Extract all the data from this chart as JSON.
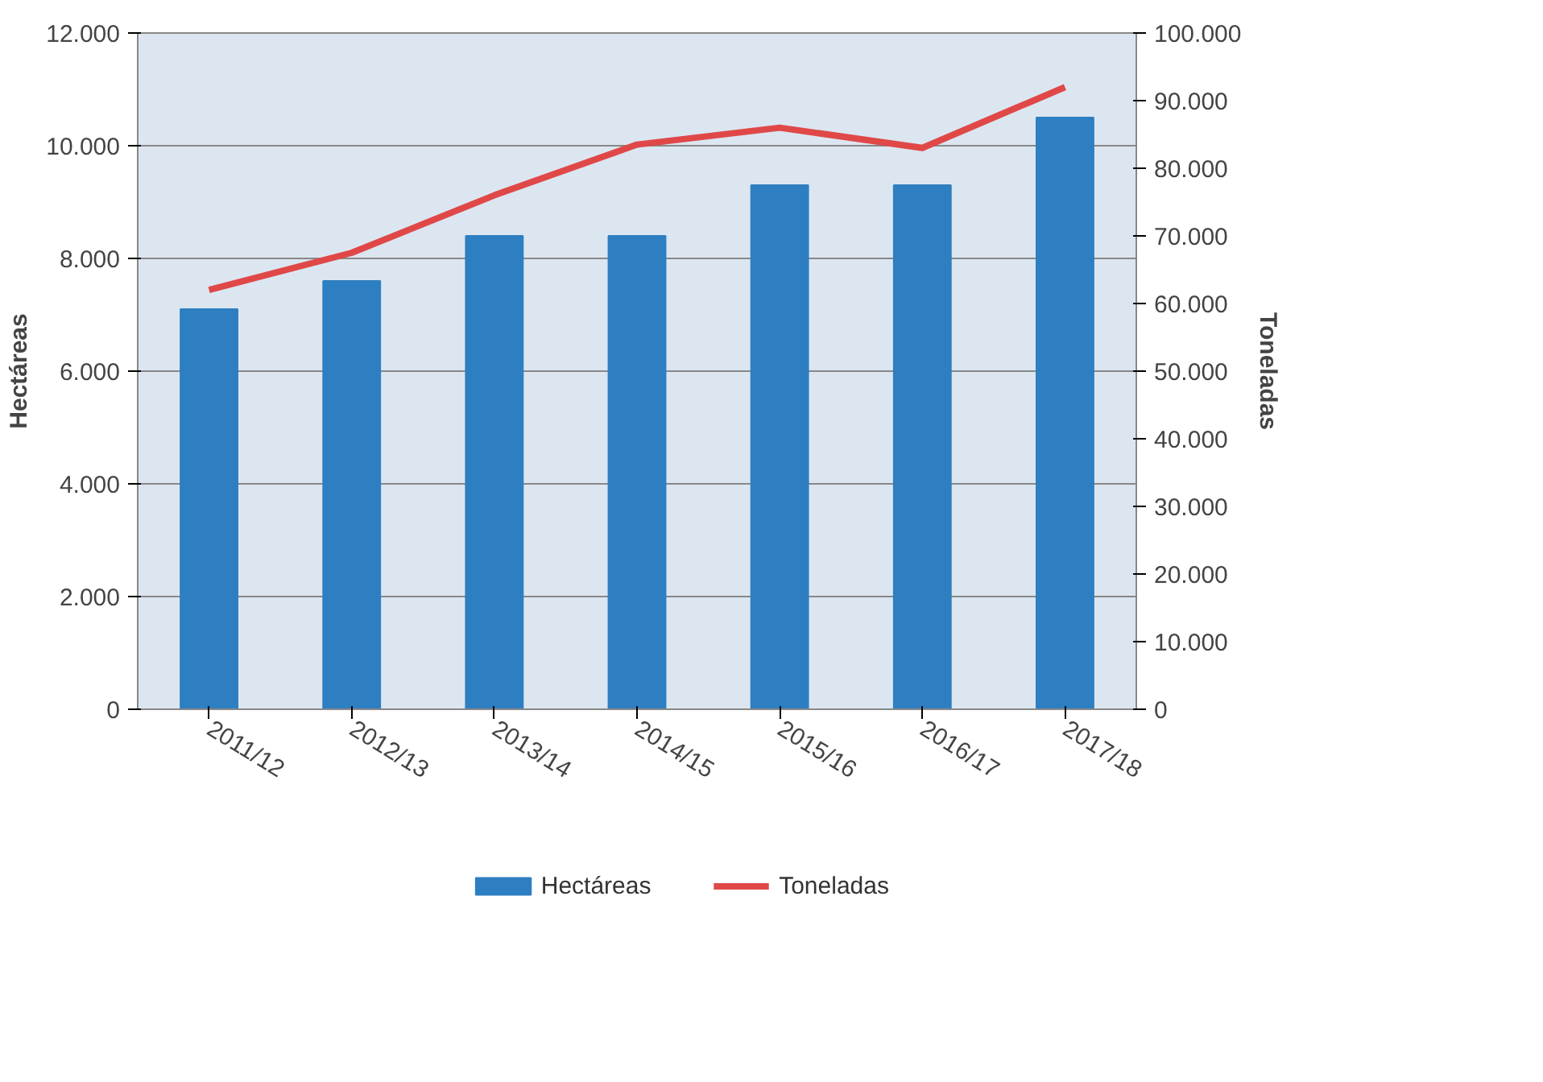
{
  "chart_data": {
    "type": "bar",
    "categories": [
      "2011/12",
      "2012/13",
      "2013/14",
      "2014/15",
      "2015/16",
      "2016/17",
      "2017/18"
    ],
    "series": [
      {
        "name": "Hectáreas",
        "color": "#2e7fc1",
        "values": [
          7100,
          7600,
          8400,
          8400,
          9300,
          9300,
          10500
        ]
      },
      {
        "name": "Toneladas",
        "type": "line",
        "axis": "y2",
        "color": "#e04848",
        "values": [
          62000,
          67500,
          76000,
          83500,
          86000,
          83000,
          92000
        ]
      }
    ],
    "ylabel": "Hectáreas",
    "y2label": "Toneladas",
    "ylim": [
      0,
      12000
    ],
    "yticks": [
      {
        "value": 0,
        "label": "0"
      },
      {
        "value": 2000,
        "label": "2.000"
      },
      {
        "value": 4000,
        "label": "4.000"
      },
      {
        "value": 6000,
        "label": "6.000"
      },
      {
        "value": 8000,
        "label": "8.000"
      },
      {
        "value": 10000,
        "label": "10.000"
      },
      {
        "value": 12000,
        "label": "12.000"
      }
    ],
    "y2lim": [
      0,
      100000
    ],
    "y2ticks": [
      {
        "value": 0,
        "label": "0"
      },
      {
        "value": 10000,
        "label": "10.000"
      },
      {
        "value": 20000,
        "label": "20.000"
      },
      {
        "value": 30000,
        "label": "30.000"
      },
      {
        "value": 40000,
        "label": "40.000"
      },
      {
        "value": 50000,
        "label": "50.000"
      },
      {
        "value": 60000,
        "label": "60.000"
      },
      {
        "value": 70000,
        "label": "70.000"
      },
      {
        "value": 80000,
        "label": "80.000"
      },
      {
        "value": 90000,
        "label": "90.000"
      },
      {
        "value": 100000,
        "label": "100.000"
      }
    ],
    "grid": "y",
    "legend": "bottom",
    "line_style": "solid",
    "marker": "none"
  }
}
